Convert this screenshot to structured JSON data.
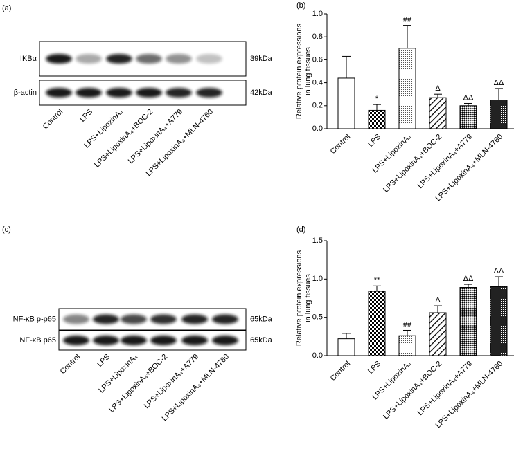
{
  "chart_data": [
    {
      "type": "bar",
      "panel": "(b)",
      "ylabel": [
        "Relative protein expressions",
        "in lung tissues"
      ],
      "categories": [
        "Control",
        "LPS",
        "LPS+LipoxinA₄",
        "LPS+LipoxinA₄+BOC-2",
        "LPS+LipoxinA₄+A779",
        "LPS+LipoxinA₄+MLN-4760"
      ],
      "values": [
        0.44,
        0.16,
        0.7,
        0.27,
        0.2,
        0.25
      ],
      "errors": [
        0.19,
        0.05,
        0.2,
        0.03,
        0.02,
        0.1
      ],
      "annotations": [
        null,
        "*",
        "##",
        "Δ",
        "ΔΔ",
        "ΔΔ"
      ],
      "fills": [
        "white",
        "checker",
        "dots",
        "diagonal",
        "crosshatch",
        "dense"
      ],
      "ylim": [
        0,
        1.0
      ],
      "yticks": [
        {
          "value": 0,
          "label": "0.0"
        },
        0.2,
        0.4,
        0.6,
        0.8,
        {
          "value": 1.0,
          "label": "1.0"
        }
      ]
    },
    {
      "type": "bar",
      "panel": "(d)",
      "ylabel": [
        "Relative protein expressions",
        "in lung tissues"
      ],
      "categories": [
        "Control",
        "LPS",
        "LPS+LipoxinA₄",
        "LPS+LipoxinA₄+BOC-2",
        "LPS+LipoxinA₄+A779",
        "LPS+LipoxinA₄+MLN-4760"
      ],
      "values": [
        0.22,
        0.84,
        0.26,
        0.56,
        0.89,
        0.9
      ],
      "errors": [
        0.07,
        0.07,
        0.07,
        0.09,
        0.04,
        0.13
      ],
      "annotations": [
        null,
        "**",
        "##",
        "Δ",
        "ΔΔ",
        "ΔΔ"
      ],
      "fills": [
        "white",
        "checker",
        "dots",
        "diagonal",
        "crosshatch",
        "dense"
      ],
      "ylim": [
        0,
        1.5
      ],
      "yticks": [
        {
          "value": 0,
          "label": "0.0"
        },
        0.5,
        {
          "value": 1.0,
          "label": "1.0"
        },
        1.5
      ]
    }
  ],
  "blots": [
    {
      "panel": "(a)",
      "rows": [
        {
          "name": "IKBα",
          "size": "39kDa"
        },
        {
          "name": "β-actin",
          "size": "42kDa"
        }
      ],
      "categories": [
        "Control",
        "LPS",
        "LPS+LipoxinA₄",
        "LPS+LipoxinA₄+BOC-2",
        "LPS+LipoxinA₄+A779",
        "LPS+LipoxinA₄+MLN-4760"
      ]
    },
    {
      "panel": "(c)",
      "rows": [
        {
          "name": "NF-κB p-p65",
          "size": "65kDa"
        },
        {
          "name": "NF-κB p65",
          "size": "65kDa"
        }
      ],
      "categories": [
        "Control",
        "LPS",
        "LPS+LipoxinA₄",
        "LPS+LipoxinA₄+BOC-2",
        "LPS+LipoxinA₄+A779",
        "LPS+LipoxinA₄+MLN-4760"
      ]
    }
  ]
}
